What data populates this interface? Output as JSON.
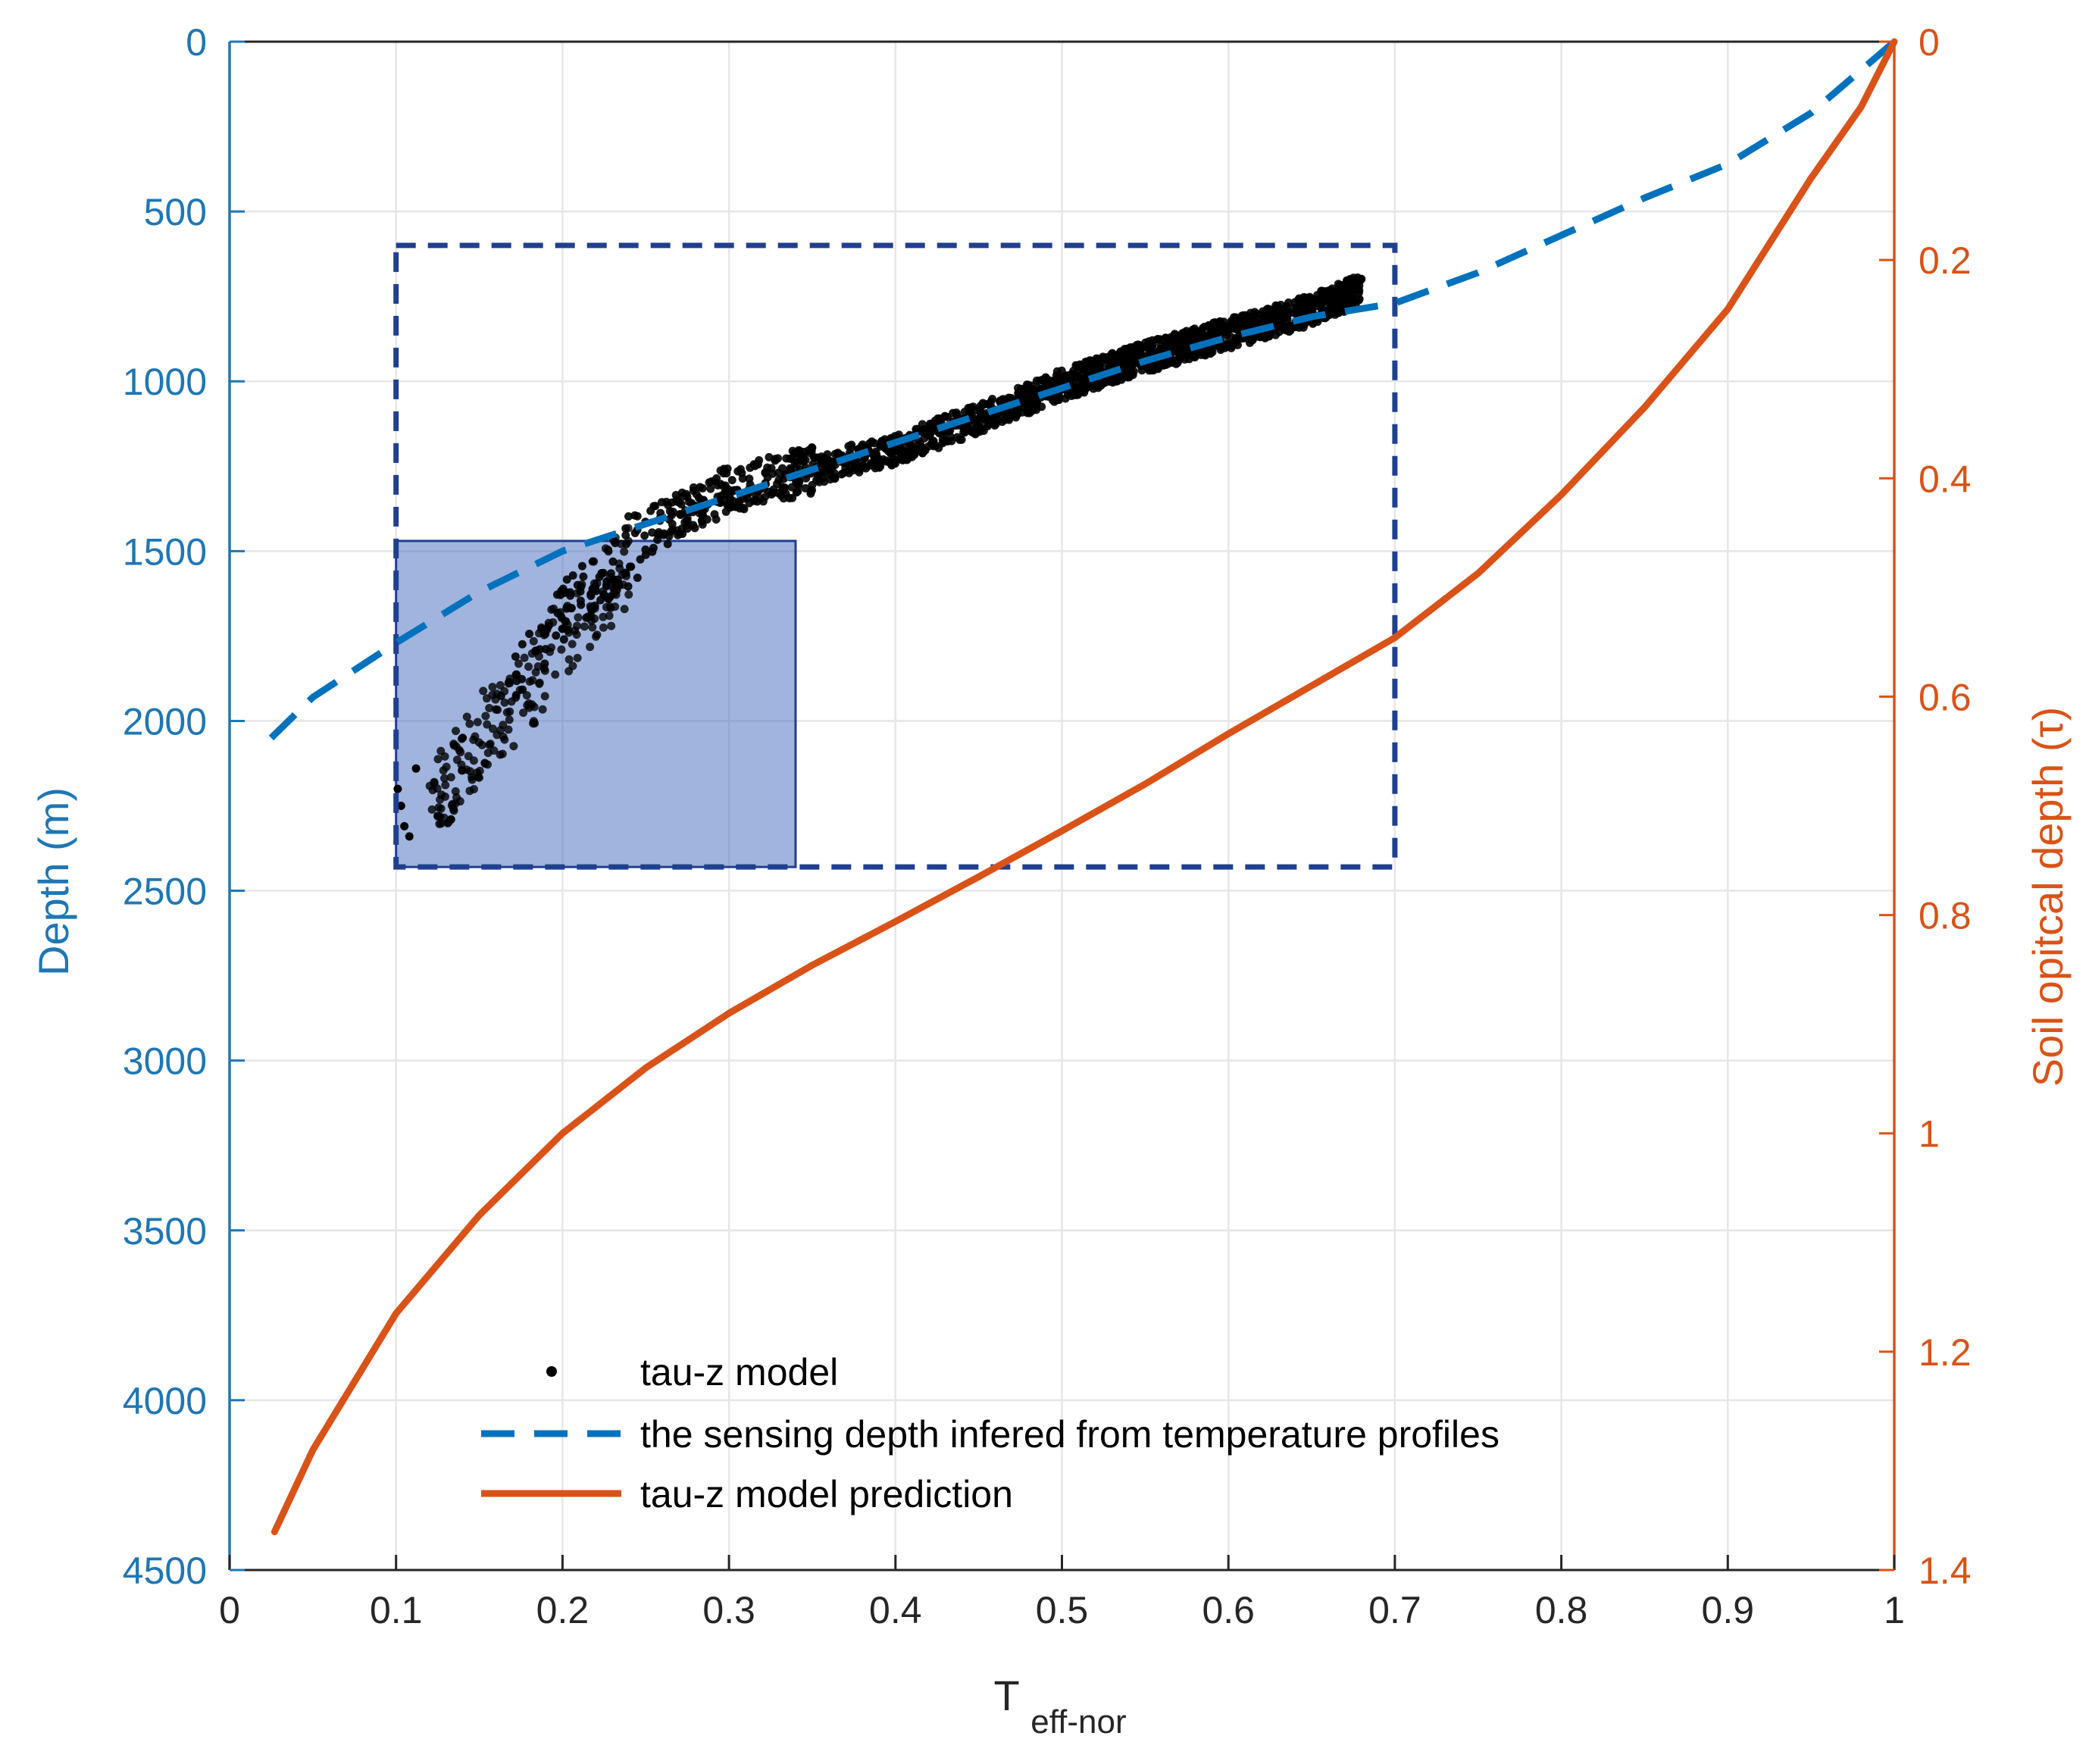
{
  "chart_data": {
    "type": "scatter",
    "title": "",
    "xlabel": "T",
    "xlabel_subscript": "eff-nor",
    "ylabel_left": "Depth (m)",
    "ylabel_right": "Soil opitcal depth (τ)",
    "xlim": [
      0,
      1
    ],
    "ylim_left": [
      0,
      4500
    ],
    "ylim_right": [
      0,
      1.4
    ],
    "y_reversed": true,
    "grid": true,
    "x_ticks": [
      "0",
      "0.1",
      "0.2",
      "0.3",
      "0.4",
      "0.5",
      "0.6",
      "0.7",
      "0.8",
      "0.9",
      "1"
    ],
    "y_left_ticks": [
      "0",
      "500",
      "1000",
      "1500",
      "2000",
      "2500",
      "3000",
      "3500",
      "4000",
      "4500"
    ],
    "y_right_ticks": [
      "0",
      "0.2",
      "0.4",
      "0.6",
      "0.8",
      "1",
      "1.2",
      "1.4"
    ],
    "legend_position": "bottom-center",
    "colors": {
      "left_axis": "#1f77b4",
      "right_axis": "#d95319",
      "scatter": "#000000",
      "sensing_line": "#0072bd",
      "prediction_line": "#d95319",
      "box": "#1f3f8f",
      "shaded_fill": "#4a6fbf"
    },
    "series": [
      {
        "name": "tau-z model",
        "kind": "scatter",
        "axis": "left",
        "trend": {
          "x": [
            0.1,
            0.12,
            0.15,
            0.18,
            0.2,
            0.22,
            0.25,
            0.28,
            0.3,
            0.35,
            0.4,
            0.45,
            0.5,
            0.55,
            0.6,
            0.65,
            0.68
          ],
          "y": [
            2300,
            2200,
            2000,
            1850,
            1700,
            1580,
            1450,
            1370,
            1320,
            1260,
            1200,
            1110,
            1010,
            930,
            860,
            790,
            730
          ]
        },
        "outliers": {
          "x": [
            0.101,
            0.103,
            0.105,
            0.108,
            0.112,
            0.125,
            0.133,
            0.14
          ],
          "y": [
            2200,
            2250,
            2310,
            2340,
            2140,
            2280,
            2290,
            2050
          ]
        }
      },
      {
        "name": "the sensing depth infered from temperature profiles",
        "kind": "dashed-line",
        "axis": "left",
        "x": [
          0.025,
          0.05,
          0.1,
          0.15,
          0.2,
          0.25,
          0.3,
          0.35,
          0.4,
          0.45,
          0.5,
          0.55,
          0.6,
          0.65,
          0.7,
          0.75,
          0.8,
          0.85,
          0.9,
          0.95,
          1.0
        ],
        "y": [
          2050,
          1930,
          1770,
          1620,
          1500,
          1420,
          1340,
          1260,
          1180,
          1100,
          1020,
          940,
          870,
          810,
          770,
          680,
          570,
          460,
          360,
          210,
          0
        ]
      },
      {
        "name": "tau-z model prediction",
        "kind": "line",
        "axis": "right",
        "x": [
          0.027,
          0.05,
          0.1,
          0.15,
          0.2,
          0.25,
          0.3,
          0.35,
          0.4,
          0.45,
          0.5,
          0.55,
          0.6,
          0.65,
          0.7,
          0.75,
          0.8,
          0.85,
          0.9,
          0.95,
          0.98,
          1.0
        ],
        "y": [
          1.365,
          1.29,
          1.165,
          1.075,
          1.0,
          0.94,
          0.89,
          0.846,
          0.806,
          0.765,
          0.723,
          0.68,
          0.634,
          0.59,
          0.546,
          0.487,
          0.415,
          0.335,
          0.245,
          0.125,
          0.06,
          0.0
        ]
      }
    ],
    "annotations": [
      {
        "kind": "dashed-rectangle",
        "x_range": [
          0.1,
          0.7
        ],
        "y_range": [
          600,
          2430
        ]
      },
      {
        "kind": "shaded-rectangle",
        "x_range": [
          0.1,
          0.34
        ],
        "y_range": [
          1470,
          2430
        ]
      }
    ]
  }
}
